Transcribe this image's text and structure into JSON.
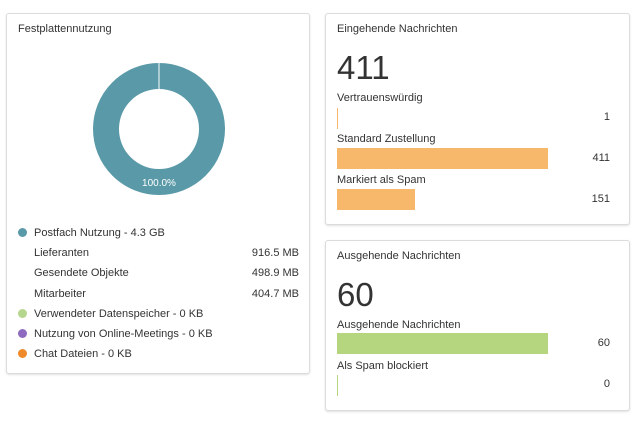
{
  "disk_usage": {
    "title": "Festplattennutzung",
    "donut_label": "100.0%",
    "donut_color": "#5a9aa8",
    "legend": [
      {
        "label": "Postfach Nutzung - 4.3 GB",
        "color": "#5a9aa8"
      },
      {
        "label": "Verwendeter Datenspeicher - 0 KB",
        "color": "#b5d68c"
      },
      {
        "label": "Nutzung von Online-Meetings - 0 KB",
        "color": "#8e6bbf"
      },
      {
        "label": "Chat Dateien - 0 KB",
        "color": "#ef8a2a"
      }
    ],
    "mailbox_breakdown": [
      {
        "label": "Lieferanten",
        "value": "916.5 MB"
      },
      {
        "label": "Gesendete Objekte",
        "value": "498.9 MB"
      },
      {
        "label": "Mitarbeiter",
        "value": "404.7 MB"
      }
    ]
  },
  "incoming": {
    "title": "Eingehende Nachrichten",
    "total": "411",
    "bar_color": "#f7b86c",
    "max": 411,
    "metrics": [
      {
        "label": "Vertrauenswürdig",
        "value": "1",
        "count": 1
      },
      {
        "label": "Standard Zustellung",
        "value": "411",
        "count": 411
      },
      {
        "label": "Markiert als Spam",
        "value": "151",
        "count": 151
      }
    ]
  },
  "outgoing": {
    "title": "Ausgehende Nachrichten",
    "total": "60",
    "bar_color": "#b5d67f",
    "max": 60,
    "metrics": [
      {
        "label": "Ausgehende Nachrichten",
        "value": "60",
        "count": 60
      },
      {
        "label": "Als Spam blockiert",
        "value": "0",
        "count": 0
      }
    ]
  }
}
